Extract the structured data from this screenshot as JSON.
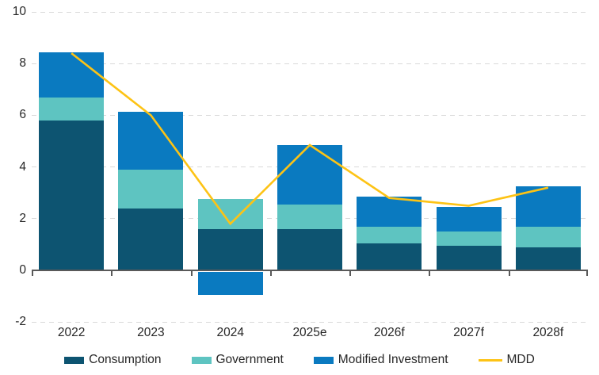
{
  "colors": {
    "background": "#ffffff",
    "grid": "#d9d9d9",
    "axis": "#595959",
    "text": "#262626",
    "consumption": "#0d5471",
    "government": "#5ec4c1",
    "modified_investment": "#0a7ac0",
    "mdd": "#fdc315"
  },
  "chart_data": {
    "type": "bar",
    "subtype": "stacked-bar-with-line-overlay",
    "title": "",
    "xlabel": "",
    "ylabel": "",
    "categories": [
      "2022",
      "2023",
      "2024",
      "2025e",
      "2026f",
      "2027f",
      "2028f"
    ],
    "series": [
      {
        "name": "Consumption",
        "type": "bar",
        "color": "#0d5471",
        "values": [
          5.8,
          2.4,
          1.6,
          1.6,
          1.05,
          0.95,
          0.9
        ]
      },
      {
        "name": "Government",
        "type": "bar",
        "color": "#5ec4c1",
        "values": [
          0.9,
          1.5,
          1.15,
          0.95,
          0.65,
          0.55,
          0.8
        ]
      },
      {
        "name": "Modified Investment",
        "type": "bar",
        "color": "#0a7ac0",
        "values": [
          1.75,
          2.25,
          -0.9,
          2.3,
          1.15,
          0.95,
          1.55
        ]
      },
      {
        "name": "MDD",
        "type": "line",
        "color": "#fdc315",
        "values": [
          8.4,
          6.0,
          1.8,
          4.85,
          2.8,
          2.5,
          3.2
        ]
      }
    ],
    "stacked": true,
    "ylim": [
      -2,
      10
    ],
    "yticks": [
      10,
      8,
      6,
      4,
      2,
      0,
      -2
    ],
    "grid": "horizontal-dashed",
    "legend_position": "bottom",
    "legend": [
      "Consumption",
      "Government",
      "Modified Investment",
      "MDD"
    ]
  }
}
